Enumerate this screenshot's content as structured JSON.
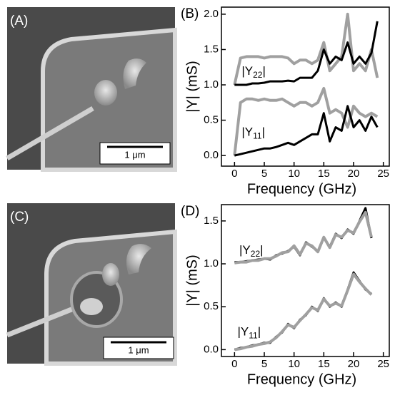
{
  "panels": [
    {
      "label": "(A)",
      "scale_bar": "1 μm"
    },
    {
      "label": "(C)",
      "scale_bar": "1 μm"
    }
  ],
  "chart_data": [
    {
      "type": "line",
      "panel_label": "(B)",
      "x_label": "Frequency (GHz)",
      "y_label": "|Y| (mS)",
      "x": [
        0,
        1,
        2,
        3,
        4,
        5,
        6,
        7,
        8,
        9,
        10,
        11,
        12,
        13,
        14,
        15,
        16,
        17,
        18,
        19,
        20,
        21,
        22,
        23,
        24
      ],
      "series": [
        {
          "color": "#a0a0a0",
          "values": [
            1.0,
            1.38,
            1.4,
            1.4,
            1.4,
            1.38,
            1.4,
            1.4,
            1.4,
            1.38,
            1.3,
            1.35,
            1.35,
            1.3,
            1.35,
            1.6,
            1.2,
            1.3,
            1.4,
            2.0,
            1.2,
            1.3,
            1.2,
            1.5,
            1.1
          ]
        },
        {
          "color": "#000000",
          "values": [
            1.0,
            1.0,
            1.0,
            1.02,
            1.02,
            1.03,
            1.05,
            1.05,
            1.05,
            1.06,
            1.05,
            1.1,
            1.1,
            1.1,
            1.2,
            1.5,
            1.3,
            1.4,
            1.35,
            1.6,
            1.3,
            1.4,
            1.3,
            1.45,
            1.9
          ]
        },
        {
          "color": "#a0a0a0",
          "values": [
            0.0,
            0.75,
            0.8,
            0.8,
            0.78,
            0.8,
            0.78,
            0.78,
            0.8,
            0.75,
            0.7,
            0.75,
            0.75,
            0.7,
            0.75,
            0.95,
            0.6,
            0.65,
            0.6,
            0.4,
            0.7,
            0.6,
            0.55,
            0.6,
            0.55
          ]
        },
        {
          "color": "#000000",
          "values": [
            0.0,
            0.02,
            0.04,
            0.06,
            0.08,
            0.1,
            0.1,
            0.12,
            0.15,
            0.18,
            0.15,
            0.2,
            0.25,
            0.3,
            0.3,
            0.6,
            0.2,
            0.4,
            0.35,
            0.7,
            0.4,
            0.5,
            0.35,
            0.55,
            0.4
          ]
        }
      ],
      "annotations": [
        {
          "text": "|Y",
          "sub": "22",
          "end": "|",
          "x": 1.2,
          "y": 1.18
        },
        {
          "text": "|Y",
          "sub": "11",
          "end": "|",
          "x": 1.2,
          "y": 0.32
        }
      ],
      "xlim": [
        -2.2,
        26
      ],
      "xticks": [
        0,
        5,
        10,
        15,
        20,
        25
      ],
      "ylim": [
        -0.15,
        2.1
      ],
      "yticks": [
        {
          "value": 0,
          "label": "0.0"
        },
        {
          "value": 0.5,
          "label": "0.5"
        },
        {
          "value": 1,
          "label": "1.0"
        },
        {
          "value": 1.5,
          "label": "1.5"
        },
        {
          "value": 2,
          "label": "2.0"
        }
      ]
    },
    {
      "type": "line",
      "panel_label": "(D)",
      "x_label": "Frequency (GHz)",
      "y_label": "|Y| (mS)",
      "x": [
        0,
        1,
        2,
        3,
        4,
        5,
        6,
        7,
        8,
        9,
        10,
        11,
        12,
        13,
        14,
        15,
        16,
        17,
        18,
        19,
        20,
        21,
        22,
        23
      ],
      "series": [
        {
          "color": "#000000",
          "values": [
            1.02,
            1.02,
            1.03,
            1.04,
            1.05,
            1.06,
            1.05,
            1.1,
            1.12,
            1.15,
            1.2,
            1.1,
            1.25,
            1.2,
            1.15,
            1.3,
            1.2,
            1.35,
            1.3,
            1.4,
            1.35,
            1.5,
            1.65,
            1.3
          ]
        },
        {
          "color": "#a0a0a0",
          "values": [
            1.01,
            1.02,
            1.02,
            1.04,
            1.04,
            1.06,
            1.06,
            1.09,
            1.13,
            1.14,
            1.21,
            1.11,
            1.24,
            1.21,
            1.14,
            1.31,
            1.19,
            1.34,
            1.31,
            1.39,
            1.36,
            1.49,
            1.6,
            1.31
          ]
        },
        {
          "color": "#000000",
          "values": [
            0.0,
            0.02,
            0.03,
            0.05,
            0.06,
            0.08,
            0.08,
            0.15,
            0.2,
            0.3,
            0.25,
            0.35,
            0.4,
            0.5,
            0.45,
            0.6,
            0.5,
            0.55,
            0.5,
            0.7,
            0.9,
            0.8,
            0.7,
            0.65
          ]
        },
        {
          "color": "#a0a0a0",
          "values": [
            0.0,
            0.01,
            0.03,
            0.04,
            0.06,
            0.07,
            0.09,
            0.14,
            0.21,
            0.29,
            0.26,
            0.34,
            0.41,
            0.49,
            0.46,
            0.59,
            0.51,
            0.54,
            0.51,
            0.69,
            0.88,
            0.79,
            0.71,
            0.64
          ]
        }
      ],
      "annotations": [
        {
          "text": "|Y",
          "sub": "22",
          "end": "|",
          "x": 0.8,
          "y": 1.15
        },
        {
          "text": "|Y",
          "sub": "11",
          "end": "|",
          "x": 0.5,
          "y": 0.2
        }
      ],
      "xlim": [
        -2.2,
        26
      ],
      "xticks": [
        0,
        5,
        10,
        15,
        20,
        25
      ],
      "ylim": [
        -0.08,
        1.69
      ],
      "yticks": [
        {
          "value": 0,
          "label": "0.0"
        },
        {
          "value": 0.5,
          "label": "0.5"
        },
        {
          "value": 1,
          "label": "1.0"
        },
        {
          "value": 1.5,
          "label": "1.5"
        }
      ]
    }
  ]
}
